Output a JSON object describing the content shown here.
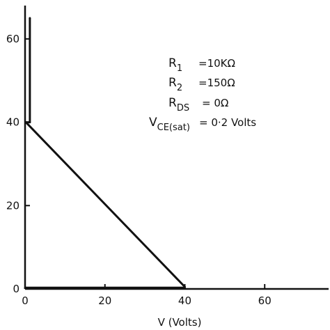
{
  "chart_data": {
    "type": "line",
    "xlabel": "V (Volts)",
    "ylabel": "",
    "xlim": [
      0,
      76
    ],
    "ylim": [
      0,
      68
    ],
    "x_ticks": [
      "0",
      "20",
      "40",
      "60"
    ],
    "y_ticks": [
      "0",
      "20",
      "40",
      "60"
    ],
    "grid": false,
    "series": [
      {
        "x": [
          1.2,
          1.2,
          0.2,
          40
        ],
        "y": [
          65,
          40,
          40,
          0.5
        ]
      },
      {
        "x": [
          0,
          40
        ],
        "y": [
          0.2,
          0.2
        ]
      }
    ],
    "annotations": [
      {
        "main": "R",
        "sub": "1",
        "value": "=10KΩ"
      },
      {
        "main": "R",
        "sub": "2",
        "value": "=150Ω"
      },
      {
        "main": "R",
        "sub": "DS",
        "value": "= 0Ω"
      },
      {
        "main": "V",
        "sub": "CE(sat)",
        "value": "= 0·2 Volts"
      }
    ]
  }
}
